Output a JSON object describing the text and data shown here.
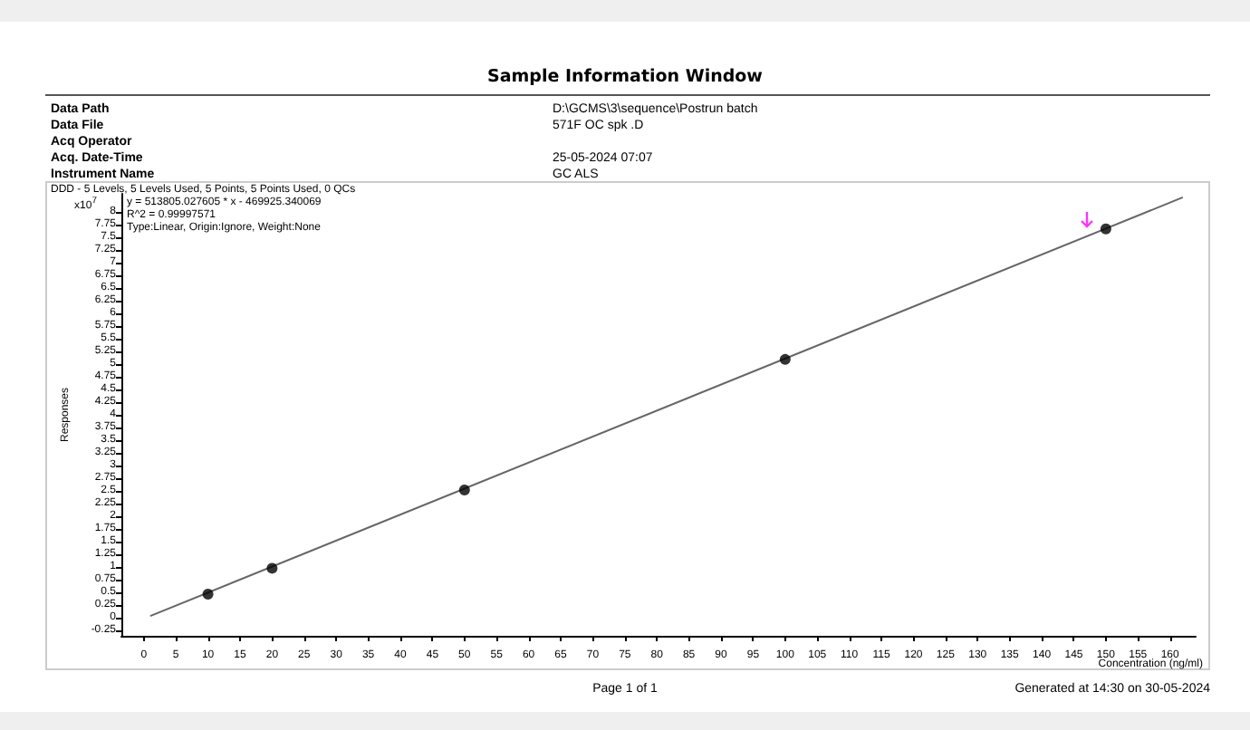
{
  "chart_data": {
    "type": "scatter",
    "title": "Sample Information Window",
    "xlabel": "Concentration (ng/ml)",
    "ylabel": "Responses",
    "annotations": [
      "Data Path",
      "D:\\GCMS\\3\\sequence\\Postrun batch",
      "Data File",
      "571F OC spk .D",
      "Acq Operator",
      "Acq. Date-Time",
      "25-05-2024 07:07",
      "Instrument Name",
      "GC ALS",
      "DDD - 5 Levels, 5 Levels Used, 5 Points, 5 Points Used, 0 QCs",
      "y = 513805.027605 * x  - 469925.340069",
      "R^2 = 0.99997571",
      "Type:Linear, Origin:Ignore, Weight:None",
      "Page 1 of 1",
      "Generated at 14:30 on 30-05-2024",
      "x10$^{7}$"
    ],
    "series": [
      {
        "type": "scatter",
        "color": "#000000",
        "marker": "circle",
        "x": [
          10,
          20,
          50,
          100,
          150
        ],
        "values": [
          0.47,
          0.98,
          2.52,
          5.09,
          7.66
        ]
      },
      {
        "type": "line",
        "color": "#666666",
        "marker": "none",
        "x": [
          1,
          162
        ],
        "values": [
          0.04,
          8.28
        ]
      }
    ],
    "xlim": [
      -3.5,
      164
    ],
    "xticks": [
      0,
      5,
      10,
      15,
      20,
      25,
      30,
      35,
      40,
      45,
      50,
      55,
      60,
      65,
      70,
      75,
      80,
      85,
      90,
      95,
      100,
      105,
      110,
      115,
      120,
      125,
      130,
      135,
      140,
      145,
      150,
      155,
      160
    ],
    "ylim": [
      -0.35,
      8.35
    ],
    "yticks": [
      -0.25,
      0,
      0.25,
      0.5,
      0.75,
      1,
      1.25,
      1.5,
      1.75,
      2,
      2.25,
      2.5,
      2.75,
      3,
      3.25,
      3.5,
      3.75,
      4,
      4.25,
      4.5,
      4.75,
      5,
      5.25,
      5.5,
      5.75,
      6,
      6.25,
      6.5,
      6.75,
      7,
      7.25,
      7.5,
      7.75,
      8
    ],
    "tick_labels": "xy"
  }
}
